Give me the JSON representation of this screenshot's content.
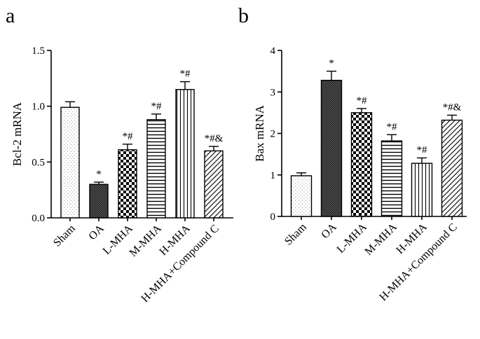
{
  "chart_data": [
    {
      "panel": "a",
      "type": "bar",
      "ylabel": "Bcl-2 mRNA",
      "xlabel": "",
      "ylim": [
        0,
        1.5
      ],
      "yticks": [
        0.0,
        0.5,
        1.0,
        1.5
      ],
      "ytick_labels": [
        "0.0",
        "0.5",
        "1.0",
        "1.5"
      ],
      "categories": [
        "Sham",
        "OA",
        "L-MHA",
        "M-MHA",
        "H-MHA",
        "H-MHA+Compound C"
      ],
      "values": [
        0.99,
        0.3,
        0.61,
        0.88,
        1.15,
        0.6
      ],
      "errors": [
        0.05,
        0.02,
        0.05,
        0.05,
        0.07,
        0.04
      ],
      "annotations": [
        "",
        "*",
        "*#",
        "*#",
        "*#",
        "*#&"
      ],
      "patterns": [
        "dots",
        "checker-fine",
        "checker",
        "hlines",
        "vlines",
        "diag"
      ]
    },
    {
      "panel": "b",
      "type": "bar",
      "ylabel": "Bax mRNA",
      "xlabel": "",
      "ylim": [
        0,
        4
      ],
      "yticks": [
        0,
        1,
        2,
        3,
        4
      ],
      "ytick_labels": [
        "0",
        "1",
        "2",
        "3",
        "4"
      ],
      "categories": [
        "Sham",
        "OA",
        "L-MHA",
        "M-MHA",
        "H-MHA",
        "H-MHA+Compound C"
      ],
      "values": [
        0.98,
        3.28,
        2.5,
        1.82,
        1.28,
        2.32
      ],
      "errors": [
        0.07,
        0.22,
        0.1,
        0.15,
        0.13,
        0.12
      ],
      "annotations": [
        "",
        "*",
        "*#",
        "*#",
        "*#",
        "*#&"
      ],
      "patterns": [
        "dots",
        "checker-fine",
        "checker",
        "hlines",
        "vlines",
        "diag"
      ]
    }
  ]
}
